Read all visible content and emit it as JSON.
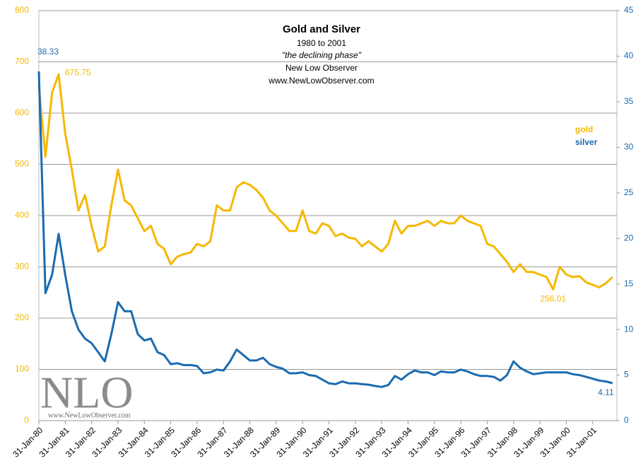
{
  "chart_data": {
    "type": "line",
    "title": "Gold and Silver",
    "subtitle": [
      "1980  to 2001",
      "\"the declining phase\"",
      "New Low Observer",
      "www.NewLowObserver.com"
    ],
    "watermark": {
      "text": "NLO",
      "url": "www.NewLowObserver.com"
    },
    "categories": [
      "31-Jan-80",
      null,
      null,
      null,
      "31-Jan-81",
      null,
      null,
      null,
      "31-Jan-82",
      null,
      null,
      null,
      "31-Jan-83",
      null,
      null,
      null,
      "31-Jan-84",
      null,
      null,
      null,
      "31-Jan-85",
      null,
      null,
      null,
      "31-Jan-86",
      null,
      null,
      null,
      "31-Jan-87",
      null,
      null,
      null,
      "31-Jan-88",
      null,
      null,
      null,
      "31-Jan-89",
      null,
      null,
      null,
      "31-Jan-90",
      null,
      null,
      null,
      "31-Jan-91",
      null,
      null,
      null,
      "31-Jan-92",
      null,
      null,
      null,
      "31-Jan-93",
      null,
      null,
      null,
      "31-Jan-94",
      null,
      null,
      null,
      "31-Jan-95",
      null,
      null,
      null,
      "31-Jan-96",
      null,
      null,
      null,
      "31-Jan-97",
      null,
      null,
      null,
      "31-Jan-98",
      null,
      null,
      null,
      "31-Jan-99",
      null,
      null,
      null,
      "31-Jan-00",
      null,
      null,
      null,
      "31-Jan-01",
      null,
      null,
      null
    ],
    "series": [
      {
        "name": "gold",
        "color": "#f5b800",
        "axis": "y",
        "values": [
          653,
          515,
          640,
          675.75,
          560,
          490,
          410,
          440,
          380,
          330,
          340,
          420,
          490,
          430,
          420,
          395,
          370,
          380,
          345,
          335,
          305,
          320,
          325,
          328,
          345,
          340,
          350,
          420,
          410,
          410,
          455,
          465,
          460,
          450,
          435,
          410,
          400,
          385,
          370,
          370,
          410,
          370,
          365,
          385,
          380,
          360,
          365,
          357,
          355,
          340,
          350,
          340,
          330,
          345,
          390,
          365,
          380,
          380,
          385,
          390,
          380,
          390,
          385,
          385,
          400,
          390,
          385,
          380,
          345,
          340,
          325,
          310,
          290,
          305,
          290,
          290,
          285,
          280,
          256.01,
          300,
          285,
          280,
          282,
          270,
          265,
          260,
          268,
          280
        ]
      },
      {
        "name": "silver",
        "color": "#1a6bb0",
        "axis": "y2",
        "values": [
          38.33,
          14,
          16,
          20.5,
          16,
          12,
          10,
          9,
          8.5,
          7.5,
          6.5,
          9.5,
          13,
          12,
          12,
          9.5,
          8.8,
          9,
          7.5,
          7.2,
          6.2,
          6.3,
          6.1,
          6.1,
          6,
          5.2,
          5.3,
          5.6,
          5.5,
          6.5,
          7.8,
          7.2,
          6.6,
          6.6,
          6.9,
          6.2,
          5.9,
          5.7,
          5.2,
          5.2,
          5.3,
          5.0,
          4.9,
          4.5,
          4.1,
          4.0,
          4.3,
          4.1,
          4.1,
          4.0,
          3.95,
          3.8,
          3.7,
          3.9,
          4.9,
          4.5,
          5.1,
          5.5,
          5.3,
          5.3,
          5.0,
          5.4,
          5.3,
          5.3,
          5.6,
          5.4,
          5.1,
          4.9,
          4.9,
          4.8,
          4.4,
          5.0,
          6.5,
          5.8,
          5.4,
          5.1,
          5.2,
          5.3,
          5.3,
          5.3,
          5.3,
          5.1,
          5.0,
          4.8,
          4.6,
          4.4,
          4.3,
          4.11
        ]
      }
    ],
    "ylim": [
      0,
      800
    ],
    "yticks": [
      0,
      100,
      200,
      300,
      400,
      500,
      600,
      700,
      800
    ],
    "y2lim": [
      0,
      45
    ],
    "y2ticks": [
      0,
      5,
      10,
      15,
      20,
      25,
      30,
      35,
      40,
      45
    ],
    "grid": true
  }
}
